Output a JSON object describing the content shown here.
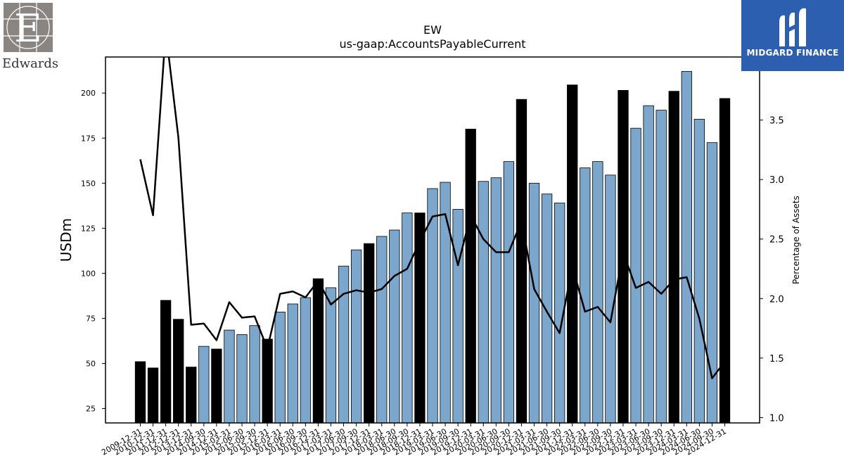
{
  "header": {
    "ticker": "EW",
    "concept": "us-gaap:AccountsPayableCurrent"
  },
  "logos": {
    "left_word": "Edwards",
    "right_word": "MIDGARD FINANCE"
  },
  "chart_data": {
    "type": "bar",
    "title": "EW",
    "subtitle": "us-gaap:AccountsPayableCurrent",
    "ylabel": "USDm",
    "y2label": "Percentage of Assets",
    "ylim": [
      17,
      220
    ],
    "y2lim": [
      0.955,
      4.03
    ],
    "yticks": [
      25,
      50,
      75,
      100,
      125,
      150,
      175,
      200
    ],
    "y2ticks": [
      1.0,
      1.5,
      2.0,
      2.5,
      3.0,
      3.5
    ],
    "grid": false,
    "colors": {
      "annual_bar": "#000000",
      "quarter_bar": "#7ba7cc",
      "bar_edge": "#000000",
      "line": "#000000"
    },
    "categories": [
      "2009-12-31",
      "2010-12-31",
      "2011-12-31",
      "2012-12-31",
      "2013-12-31",
      "2014-09-30",
      "2014-12-31",
      "2015-03-31",
      "2015-06-30",
      "2015-09-30",
      "2015-12-31",
      "2016-03-31",
      "2016-06-30",
      "2016-09-30",
      "2016-12-31",
      "2017-03-31",
      "2017-06-30",
      "2017-09-30",
      "2017-12-31",
      "2018-03-31",
      "2018-06-30",
      "2018-09-30",
      "2018-12-31",
      "2019-03-31",
      "2019-06-30",
      "2019-09-30",
      "2019-12-31",
      "2020-03-31",
      "2020-06-30",
      "2020-09-30",
      "2020-12-31",
      "2021-03-31",
      "2021-06-30",
      "2021-09-30",
      "2021-12-31",
      "2022-03-31",
      "2022-06-30",
      "2022-09-30",
      "2022-12-31",
      "2023-03-31",
      "2023-06-30",
      "2023-09-30",
      "2023-12-31",
      "2024-03-31",
      "2024-06-30",
      "2024-09-30",
      "2024-12-31"
    ],
    "series": [
      {
        "name": "USDm",
        "axis": "left",
        "values": [
          51.0,
          47.5,
          85.0,
          74.5,
          48.0,
          59.5,
          58.0,
          68.5,
          66.0,
          71.0,
          63.5,
          78.5,
          83.0,
          86.5,
          97.0,
          92.0,
          104.0,
          113.0,
          116.5,
          120.5,
          124.0,
          133.5,
          133.5,
          147.0,
          150.5,
          135.5,
          180.0,
          151.0,
          153.0,
          162.0,
          196.5,
          150.0,
          144.0,
          139.0,
          204.5,
          158.5,
          162.0,
          154.5,
          201.5,
          180.5,
          193.0,
          190.5,
          201.0,
          212.0,
          185.5,
          172.5,
          197.0
        ],
        "annual": [
          true,
          true,
          true,
          true,
          true,
          false,
          true,
          false,
          false,
          false,
          true,
          false,
          false,
          false,
          true,
          false,
          false,
          false,
          true,
          false,
          false,
          false,
          true,
          false,
          false,
          false,
          true,
          false,
          false,
          false,
          true,
          false,
          false,
          false,
          true,
          false,
          false,
          false,
          true,
          false,
          false,
          false,
          true,
          false,
          false,
          false,
          true
        ]
      },
      {
        "name": "Percentage of Assets",
        "axis": "right",
        "values": [
          3.17,
          2.7,
          4.25,
          3.35,
          1.78,
          1.79,
          1.65,
          1.97,
          1.84,
          1.85,
          1.58,
          2.04,
          2.06,
          2.01,
          2.15,
          1.95,
          2.04,
          2.07,
          2.05,
          2.08,
          2.19,
          2.25,
          2.48,
          2.69,
          2.71,
          2.28,
          2.7,
          2.5,
          2.39,
          2.39,
          2.65,
          2.08,
          1.89,
          1.71,
          2.27,
          1.89,
          1.93,
          1.8,
          2.39,
          2.09,
          2.14,
          2.04,
          2.16,
          2.18,
          1.83,
          1.33,
          1.47
        ]
      }
    ]
  }
}
